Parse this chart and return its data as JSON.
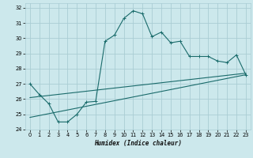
{
  "title": "",
  "xlabel": "Humidex (Indice chaleur)",
  "ylabel": "",
  "bg_color": "#cce8ec",
  "grid_color": "#aacdd4",
  "line_color": "#1a6b6b",
  "xlim": [
    -0.5,
    23.5
  ],
  "ylim": [
    24,
    32.3
  ],
  "yticks": [
    24,
    25,
    26,
    27,
    28,
    29,
    30,
    31,
    32
  ],
  "xticks": [
    0,
    1,
    2,
    3,
    4,
    5,
    6,
    7,
    8,
    9,
    10,
    11,
    12,
    13,
    14,
    15,
    16,
    17,
    18,
    19,
    20,
    21,
    22,
    23
  ],
  "series1_x": [
    0,
    1,
    2,
    3,
    4,
    5,
    6,
    7,
    8,
    9,
    10,
    11,
    12,
    13,
    14,
    15,
    16,
    17,
    18,
    19,
    20,
    21,
    22,
    23
  ],
  "series1_y": [
    27.0,
    26.3,
    25.7,
    24.5,
    24.5,
    25.0,
    25.8,
    25.85,
    29.8,
    30.2,
    31.3,
    31.8,
    31.6,
    30.1,
    30.4,
    29.7,
    29.8,
    28.8,
    28.8,
    28.8,
    28.5,
    28.4,
    28.9,
    27.6
  ],
  "series2_x": [
    0,
    23
  ],
  "series2_y": [
    26.1,
    27.7
  ],
  "series3_x": [
    0,
    23
  ],
  "series3_y": [
    24.8,
    27.6
  ]
}
